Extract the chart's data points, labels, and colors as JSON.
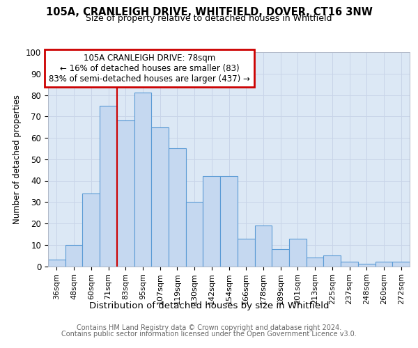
{
  "title1": "105A, CRANLEIGH DRIVE, WHITFIELD, DOVER, CT16 3NW",
  "title2": "Size of property relative to detached houses in Whitfield",
  "xlabel": "Distribution of detached houses by size in Whitfield",
  "ylabel": "Number of detached properties",
  "categories": [
    "36sqm",
    "48sqm",
    "60sqm",
    "71sqm",
    "83sqm",
    "95sqm",
    "107sqm",
    "119sqm",
    "130sqm",
    "142sqm",
    "154sqm",
    "166sqm",
    "178sqm",
    "189sqm",
    "201sqm",
    "213sqm",
    "225sqm",
    "237sqm",
    "248sqm",
    "260sqm",
    "272sqm"
  ],
  "values": [
    3,
    10,
    34,
    75,
    68,
    81,
    65,
    55,
    30,
    42,
    42,
    13,
    19,
    8,
    13,
    4,
    5,
    2,
    1,
    2,
    2
  ],
  "bar_color": "#c5d8f0",
  "bar_edge_color": "#5b9bd5",
  "marker_label": "105A CRANLEIGH DRIVE: 78sqm",
  "annotation_line1": "← 16% of detached houses are smaller (83)",
  "annotation_line2": "83% of semi-detached houses are larger (437) →",
  "annotation_box_color": "#ffffff",
  "annotation_box_edge": "#cc0000",
  "vline_color": "#cc0000",
  "vline_x": 3.5,
  "ylim": [
    0,
    100
  ],
  "yticks": [
    0,
    10,
    20,
    30,
    40,
    50,
    60,
    70,
    80,
    90,
    100
  ],
  "grid_color": "#c8d4e8",
  "bg_color": "#dce8f5",
  "footer1": "Contains HM Land Registry data © Crown copyright and database right 2024.",
  "footer2": "Contains public sector information licensed under the Open Government Licence v3.0."
}
